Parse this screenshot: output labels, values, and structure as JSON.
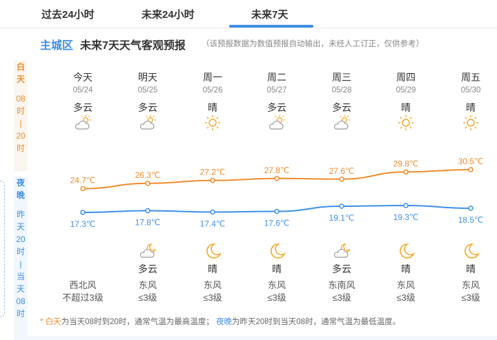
{
  "tabs": [
    {
      "label": "过去24小时",
      "active": false
    },
    {
      "label": "未来24小时",
      "active": false
    },
    {
      "label": "未来7天",
      "active": true
    }
  ],
  "title": {
    "city": "主城区",
    "main": "未来7天天气客观预报",
    "note": "（该预报数据为数值预报自动输出，未经人工订正，仅供参考）"
  },
  "left_labels": {
    "day": [
      "白",
      "天",
      "",
      "08",
      "时",
      "|",
      "20",
      "时"
    ],
    "night": [
      "夜",
      "晚",
      "",
      "昨",
      "天",
      "20",
      "时",
      "|",
      "当",
      "天",
      "08",
      "时"
    ]
  },
  "days": [
    {
      "weekday": "今天",
      "date": "05/24",
      "day_weather": "多云",
      "day_icon": "partly-cloudy-day-icon",
      "night_weather": "",
      "night_icon": "",
      "wind_dir": "西北风",
      "wind_level": "不超过3级"
    },
    {
      "weekday": "明天",
      "date": "05/25",
      "day_weather": "多云",
      "day_icon": "partly-cloudy-day-icon",
      "night_weather": "多云",
      "night_icon": "partly-cloudy-night-icon",
      "wind_dir": "东风",
      "wind_level": "≤3级"
    },
    {
      "weekday": "周一",
      "date": "05/26",
      "day_weather": "晴",
      "day_icon": "sun-icon",
      "night_weather": "晴",
      "night_icon": "moon-icon",
      "wind_dir": "东风",
      "wind_level": "≤3级"
    },
    {
      "weekday": "周二",
      "date": "05/27",
      "day_weather": "多云",
      "day_icon": "partly-cloudy-day-icon",
      "night_weather": "晴",
      "night_icon": "moon-icon",
      "wind_dir": "东风",
      "wind_level": "≤3级"
    },
    {
      "weekday": "周三",
      "date": "05/28",
      "day_weather": "多云",
      "day_icon": "partly-cloudy-day-icon",
      "night_weather": "多云",
      "night_icon": "partly-cloudy-night-icon",
      "wind_dir": "东南风",
      "wind_level": "≤3级"
    },
    {
      "weekday": "周四",
      "date": "05/29",
      "day_weather": "晴",
      "day_icon": "sun-icon",
      "night_weather": "晴",
      "night_icon": "moon-icon",
      "wind_dir": "东风",
      "wind_level": "≤3级"
    },
    {
      "weekday": "周五",
      "date": "05/30",
      "day_weather": "晴",
      "day_icon": "sun-icon",
      "night_weather": "晴",
      "night_icon": "moon-icon",
      "wind_dir": "东风",
      "wind_level": "≤3级"
    }
  ],
  "chart_data": {
    "type": "line",
    "categories": [
      "05/24",
      "05/25",
      "05/26",
      "05/27",
      "05/28",
      "05/29",
      "05/30"
    ],
    "series": [
      {
        "values": [
          24.7,
          26.3,
          27.2,
          27.8,
          27.6,
          29.8,
          30.5
        ],
        "labels": [
          "24.7℃",
          "26.3℃",
          "27.2℃",
          "27.8℃",
          "27.6℃",
          "29.8℃",
          "30.5℃"
        ],
        "color": "#f08c2a"
      },
      {
        "values": [
          17.3,
          17.8,
          17.4,
          17.6,
          19.1,
          19.3,
          18.5
        ],
        "labels": [
          "17.3℃",
          "17.8℃",
          "17.4℃",
          "17.6℃",
          "19.1℃",
          "19.3℃",
          "18.5℃"
        ],
        "color": "#3d8ee8"
      }
    ]
  },
  "footer": {
    "star": "*",
    "day_word": "白天",
    "day_desc": "为当天08时到20时，通常气温为最高温度；",
    "night_word": "夜晚",
    "night_desc": "为昨天20时到当天08时，通常气温为最低温度。"
  },
  "colors": {
    "accent": "#3d8ee8",
    "day": "#f08c2a"
  }
}
